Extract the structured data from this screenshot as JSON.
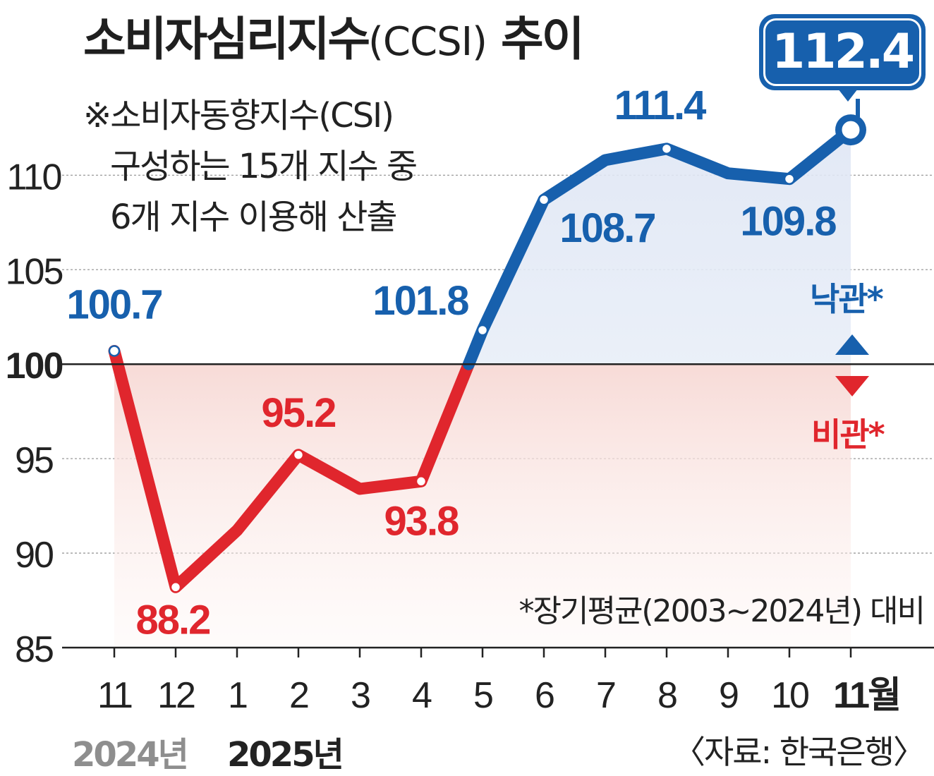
{
  "title": {
    "main": "소비자심리지수",
    "abbr": "(CCSI)",
    "suffix": "추이"
  },
  "note": {
    "line1": "※소비자동향지수(CSI)",
    "line2": "구성하는 15개 지수 중",
    "line3": "6개 지수 이용해 산출"
  },
  "legend": {
    "optimism": "낙관*",
    "pessimism": "비관*"
  },
  "baseline_note": "*장기평균(2003~2024년) 대비",
  "source": "〈자료: 한국은행〉",
  "years": {
    "y2024": "2024년",
    "y2025": "2025년"
  },
  "callout": "112.4",
  "colors": {
    "blue": "#1760ad",
    "red": "#e0262d",
    "grid": "#9a9a9a"
  },
  "chart_data": {
    "type": "line",
    "categories": [
      "11",
      "12",
      "1",
      "2",
      "3",
      "4",
      "5",
      "6",
      "7",
      "8",
      "9",
      "10",
      "11월"
    ],
    "values": [
      100.7,
      88.2,
      91.2,
      95.2,
      93.4,
      93.8,
      101.8,
      108.7,
      110.8,
      111.4,
      110.1,
      109.8,
      112.4
    ],
    "labeled_points": [
      {
        "index": 0,
        "label": "100.7"
      },
      {
        "index": 1,
        "label": "88.2"
      },
      {
        "index": 3,
        "label": "95.2"
      },
      {
        "index": 5,
        "label": "93.8"
      },
      {
        "index": 6,
        "label": "101.8"
      },
      {
        "index": 7,
        "label": "108.7"
      },
      {
        "index": 9,
        "label": "111.4"
      },
      {
        "index": 11,
        "label": "109.8"
      }
    ],
    "marker_indices": [
      0,
      1,
      3,
      5,
      6,
      7,
      9,
      11,
      12
    ],
    "yticks": [
      85,
      90,
      95,
      100,
      105,
      110
    ],
    "ylim": [
      85,
      113
    ],
    "baseline": 100,
    "grid": true
  }
}
